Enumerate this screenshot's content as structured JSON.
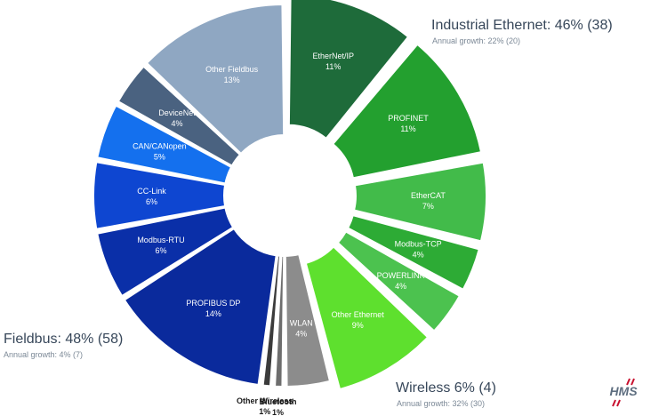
{
  "chart_data": {
    "type": "pie",
    "donut": true,
    "groups": [
      {
        "title": "Industrial Ethernet: 46% (38)",
        "growth": "Annual growth: 22% (20)"
      },
      {
        "title": "Fieldbus: 48% (58)",
        "growth": "Annual growth: 4% (7)"
      },
      {
        "title": "Wireless 6% (4)",
        "growth": "Annual growth: 32% (30)"
      }
    ],
    "slices": [
      {
        "label": "EtherNet/IP",
        "value": 11,
        "value_label": "11%",
        "group": "Industrial Ethernet",
        "color": "#1e6b3a"
      },
      {
        "label": "PROFINET",
        "value": 11,
        "value_label": "11%",
        "group": "Industrial Ethernet",
        "color": "#23a02f"
      },
      {
        "label": "EtherCAT",
        "value": 7,
        "value_label": "7%",
        "group": "Industrial Ethernet",
        "color": "#42bb4a"
      },
      {
        "label": "Modbus-TCP",
        "value": 4,
        "value_label": "4%",
        "group": "Industrial Ethernet",
        "color": "#2dab35"
      },
      {
        "label": "POWERLINK",
        "value": 4,
        "value_label": "4%",
        "group": "Industrial Ethernet",
        "color": "#4cc24f"
      },
      {
        "label": "Other Ethernet",
        "value": 9,
        "value_label": "9%",
        "group": "Industrial Ethernet",
        "color": "#5ee02e"
      },
      {
        "label": "WLAN",
        "value": 4,
        "value_label": "4%",
        "group": "Wireless",
        "color": "#8c8c8c"
      },
      {
        "label": "Bluetooth",
        "value": 1,
        "value_label": "1%",
        "group": "Wireless",
        "color": "#6d6d6d"
      },
      {
        "label": "Other Wireless",
        "value": 1,
        "value_label": "1%",
        "group": "Wireless",
        "color": "#3b3b3b"
      },
      {
        "label": "PROFIBUS DP",
        "value": 14,
        "value_label": "14%",
        "group": "Fieldbus",
        "color": "#0a2a9c"
      },
      {
        "label": "Modbus-RTU",
        "value": 6,
        "value_label": "6%",
        "group": "Fieldbus",
        "color": "#0a2fa8"
      },
      {
        "label": "CC-Link",
        "value": 6,
        "value_label": "6%",
        "group": "Fieldbus",
        "color": "#0e46d1"
      },
      {
        "label": "CAN/CANopen",
        "value": 5,
        "value_label": "5%",
        "group": "Fieldbus",
        "color": "#1470ee"
      },
      {
        "label": "DeviceNet",
        "value": 4,
        "value_label": "4%",
        "group": "Fieldbus",
        "color": "#4a6280"
      },
      {
        "label": "Other Fieldbus",
        "value": 13,
        "value_label": "13%",
        "group": "Fieldbus",
        "color": "#8fa7c2"
      }
    ]
  },
  "logo": {
    "text": "HMS"
  }
}
